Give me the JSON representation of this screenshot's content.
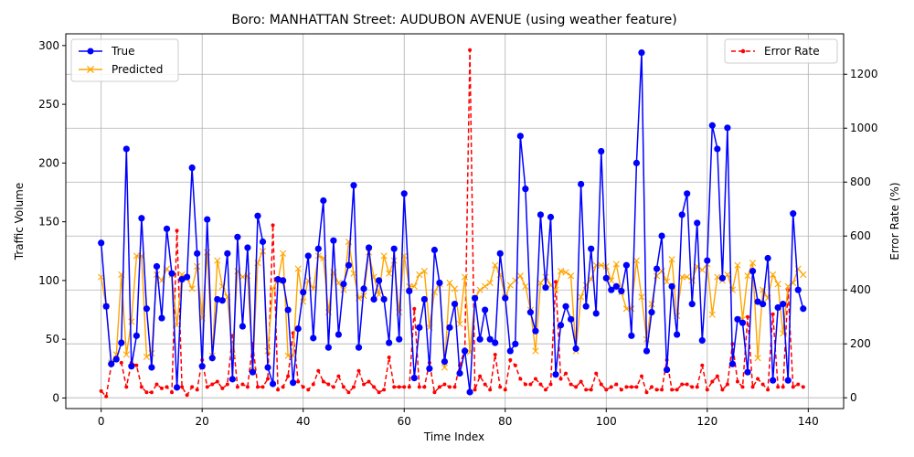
{
  "chart_data": {
    "type": "line",
    "title": "Boro: MANHATTAN Street: AUDUBON AVENUE (using weather feature)",
    "xlabel": "Time Index",
    "ylabel": "Traffic Volume",
    "y2label": "Error Rate (%)",
    "xlim": [
      -7,
      147
    ],
    "ylim": [
      -9,
      310
    ],
    "y2lim": [
      -40,
      1350
    ],
    "xticks": [
      0,
      20,
      40,
      60,
      80,
      100,
      120,
      140
    ],
    "yticks": [
      0,
      50,
      100,
      150,
      200,
      250,
      300
    ],
    "y2ticks": [
      0,
      200,
      400,
      600,
      800,
      1000,
      1200
    ],
    "grid": true,
    "legend_left": "top-left",
    "legend_right": "top-right",
    "colors": {
      "true": "#0000ff",
      "predicted": "#ffa500",
      "error": "#ff0000"
    },
    "series": [
      {
        "name": "True",
        "axis": "left",
        "values": [
          132,
          78,
          29,
          33,
          47,
          212,
          27,
          53,
          153,
          76,
          26,
          112,
          68,
          144,
          106,
          9,
          101,
          103,
          196,
          123,
          27,
          152,
          34,
          84,
          83,
          123,
          16,
          137,
          61,
          128,
          22,
          155,
          133,
          26,
          12,
          101,
          100,
          75,
          13,
          59,
          90,
          121,
          51,
          127,
          168,
          43,
          134,
          54,
          97,
          113,
          181,
          43,
          93,
          128,
          84,
          100,
          84,
          47,
          127,
          50,
          174,
          91,
          17,
          60,
          84,
          25,
          126,
          98,
          31,
          60,
          80,
          21,
          40,
          5,
          85,
          50,
          75,
          50,
          47,
          123,
          85,
          40,
          46,
          223,
          178,
          73,
          57,
          156,
          94,
          154,
          20,
          62,
          78,
          67,
          42,
          182,
          78,
          127,
          72,
          210,
          102,
          92,
          95,
          91,
          113,
          53,
          200,
          294,
          40,
          73,
          110,
          138,
          24,
          95,
          54,
          156,
          174,
          80,
          149,
          49,
          117,
          232,
          212,
          102,
          230,
          29,
          67,
          64,
          22,
          108,
          82,
          80,
          119,
          15,
          77,
          80,
          15,
          157,
          92,
          76
        ]
      },
      {
        "name": "Predicted",
        "axis": "left",
        "values": [
          103,
          78,
          30,
          37,
          105,
          37,
          65,
          121,
          121,
          35,
          38,
          105,
          100,
          110,
          105,
          62,
          105,
          102,
          93,
          112,
          68,
          124,
          36,
          117,
          95,
          86,
          37,
          108,
          103,
          104,
          24,
          115,
          125,
          40,
          93,
          100,
          123,
          36,
          36,
          110,
          82,
          100,
          93,
          121,
          119,
          73,
          107,
          98,
          92,
          133,
          106,
          85,
          87,
          124,
          103,
          88,
          121,
          106,
          117,
          73,
          121,
          95,
          95,
          105,
          108,
          60,
          90,
          97,
          26,
          98,
          93,
          63,
          103,
          39,
          85,
          92,
          95,
          98,
          113,
          105,
          86,
          96,
          100,
          104,
          95,
          75,
          40,
          98,
          103,
          96,
          92,
          108,
          107,
          104,
          40,
          86,
          96,
          101,
          113,
          113,
          112,
          100,
          114,
          90,
          76,
          76,
          117,
          86,
          50,
          80,
          104,
          108,
          99,
          118,
          70,
          103,
          103,
          100,
          112,
          109,
          114,
          71,
          103,
          100,
          105,
          92,
          113,
          67,
          104,
          115,
          34,
          92,
          85,
          105,
          97,
          55,
          95,
          98,
          110,
          105
        ]
      },
      {
        "name": "Error Rate",
        "axis": "right",
        "values": [
          25,
          5,
          120,
          140,
          130,
          40,
          130,
          120,
          40,
          20,
          20,
          50,
          35,
          40,
          20,
          620,
          40,
          10,
          40,
          30,
          140,
          40,
          50,
          60,
          35,
          50,
          230,
          40,
          50,
          40,
          200,
          40,
          40,
          70,
          640,
          30,
          40,
          80,
          240,
          60,
          40,
          30,
          50,
          100,
          60,
          50,
          40,
          80,
          40,
          20,
          40,
          100,
          50,
          60,
          40,
          20,
          30,
          150,
          40,
          40,
          40,
          40,
          330,
          40,
          40,
          130,
          20,
          40,
          50,
          40,
          40,
          120,
          180,
          1290,
          30,
          80,
          50,
          30,
          160,
          40,
          30,
          140,
          120,
          70,
          50,
          50,
          70,
          50,
          30,
          50,
          430,
          70,
          90,
          50,
          40,
          60,
          30,
          30,
          90,
          50,
          30,
          40,
          50,
          30,
          40,
          40,
          40,
          80,
          20,
          40,
          30,
          30,
          140,
          30,
          30,
          50,
          50,
          40,
          40,
          120,
          30,
          60,
          80,
          30,
          50,
          200,
          60,
          40,
          300,
          40,
          70,
          50,
          30,
          310,
          40,
          40,
          400,
          40,
          50,
          40
        ]
      }
    ]
  }
}
